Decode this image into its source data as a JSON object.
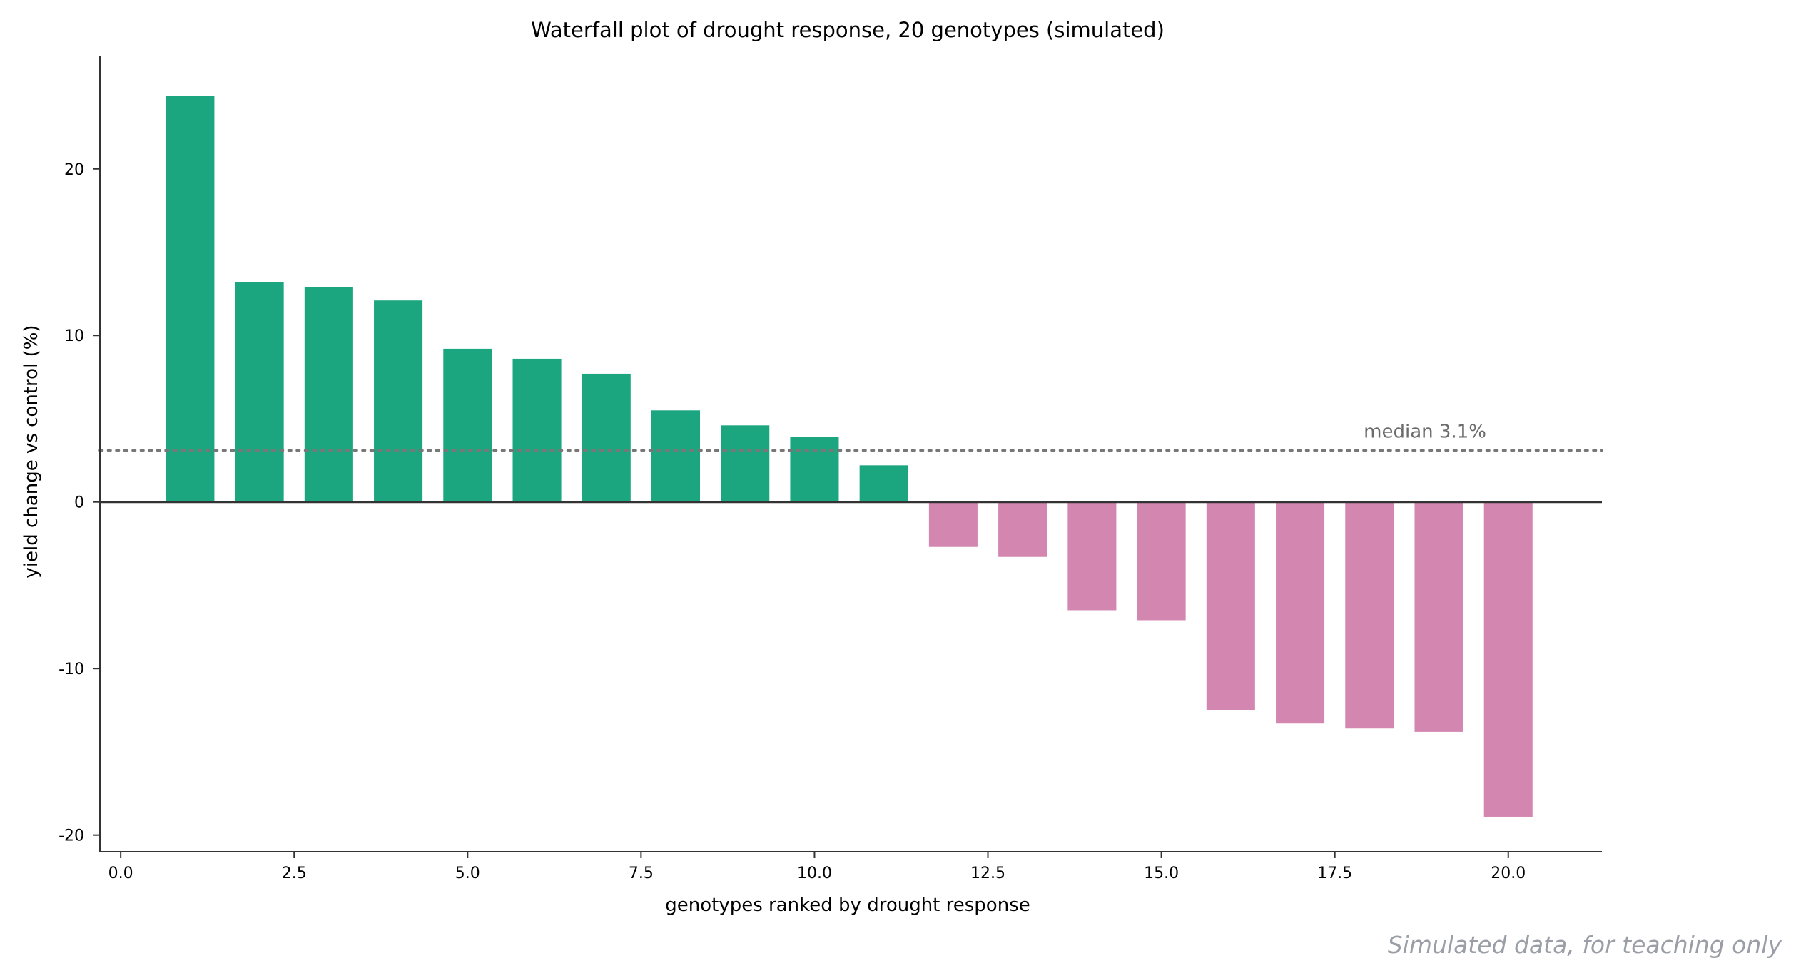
{
  "chart_data": {
    "type": "bar",
    "title": "Waterfall plot of drought response, 20 genotypes (simulated)",
    "xlabel": "genotypes ranked by drought response",
    "ylabel": "yield change vs control (%)",
    "x": [
      1,
      2,
      3,
      4,
      5,
      6,
      7,
      8,
      9,
      10,
      11,
      12,
      13,
      14,
      15,
      16,
      17,
      18,
      19,
      20
    ],
    "values": [
      24.4,
      13.2,
      12.9,
      12.1,
      9.2,
      8.6,
      7.7,
      5.5,
      4.6,
      3.9,
      2.2,
      -2.7,
      -3.3,
      -6.5,
      -7.1,
      -12.5,
      -13.3,
      -13.6,
      -13.8,
      -18.9
    ],
    "xlim": [
      -0.3,
      21.35
    ],
    "ylim": [
      -21.0,
      26.8
    ],
    "xticks": [
      0.0,
      2.5,
      5.0,
      7.5,
      10.0,
      12.5,
      15.0,
      17.5,
      20.0
    ],
    "xtick_labels": [
      "0.0",
      "2.5",
      "5.0",
      "7.5",
      "10.0",
      "12.5",
      "15.0",
      "17.5",
      "20.0"
    ],
    "yticks": [
      -20,
      -10,
      0,
      10,
      20
    ],
    "ytick_labels": [
      "-20",
      "-10",
      "0",
      "10",
      "20"
    ],
    "median": 3.1,
    "median_label": "median 3.1%",
    "positive_color": "#1ba680",
    "negative_color": "#d387b0",
    "grid": false
  },
  "footnote": "Simulated data, for teaching only"
}
